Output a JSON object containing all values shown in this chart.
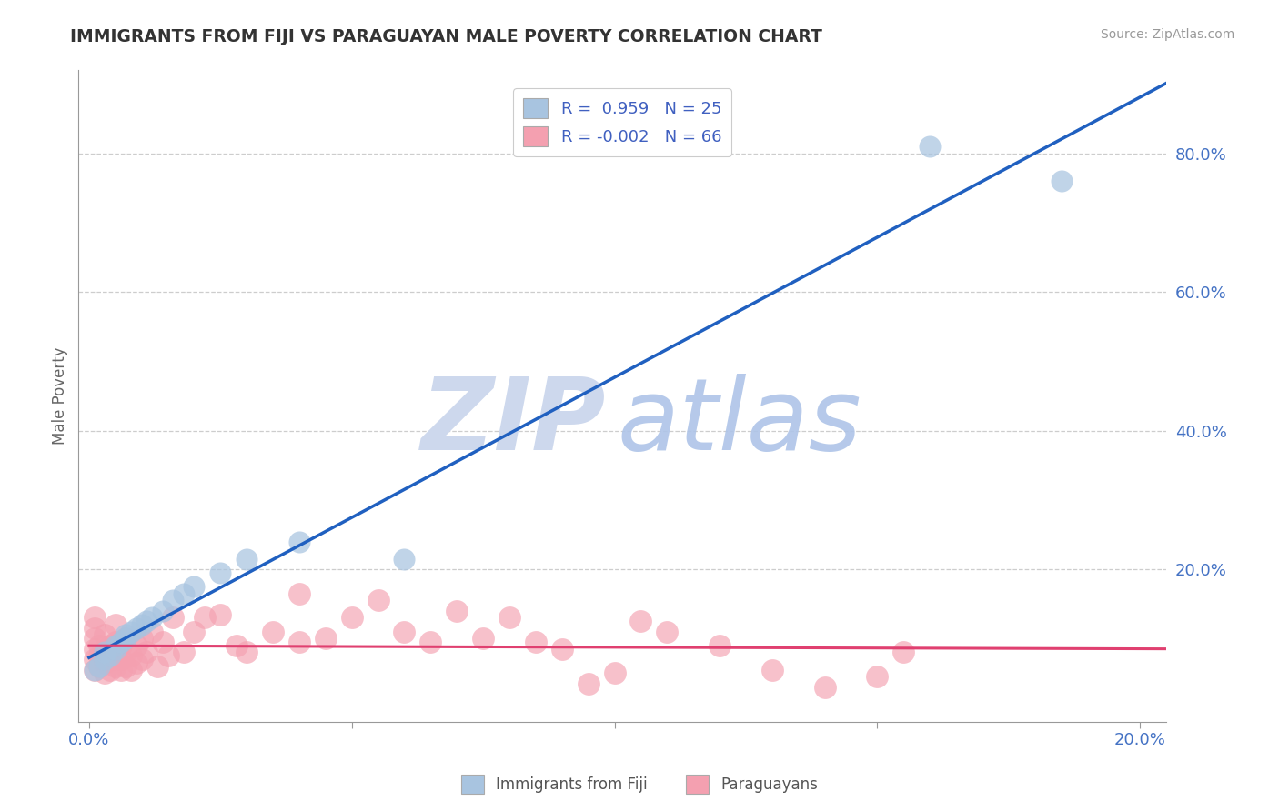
{
  "title": "IMMIGRANTS FROM FIJI VS PARAGUAYAN MALE POVERTY CORRELATION CHART",
  "source": "Source: ZipAtlas.com",
  "tick_color": "#4472c4",
  "ylabel": "Male Poverty",
  "xlim": [
    -0.002,
    0.205
  ],
  "ylim": [
    -0.02,
    0.92
  ],
  "xticks": [
    0.0,
    0.05,
    0.1,
    0.15,
    0.2
  ],
  "yticks": [
    0.2,
    0.4,
    0.6,
    0.8
  ],
  "ytick_labels": [
    "20.0%",
    "40.0%",
    "60.0%",
    "80.0%"
  ],
  "xtick_labels": [
    "0.0%",
    "",
    "",
    "",
    "20.0%"
  ],
  "fiji_R": 0.959,
  "fiji_N": 25,
  "para_R": -0.002,
  "para_N": 66,
  "fiji_color": "#a8c4e0",
  "para_color": "#f4a0b0",
  "fiji_line_color": "#2060c0",
  "para_line_color": "#e04070",
  "legend_text_color": "#4060c0",
  "watermark_zip_color": "#cdd8ed",
  "watermark_atlas_color": "#aec4e8",
  "fiji_x": [
    0.001,
    0.002,
    0.003,
    0.003,
    0.004,
    0.005,
    0.005,
    0.006,
    0.007,
    0.007,
    0.008,
    0.009,
    0.01,
    0.011,
    0.012,
    0.014,
    0.016,
    0.018,
    0.02,
    0.025,
    0.03,
    0.04,
    0.06,
    0.16,
    0.185
  ],
  "fiji_y": [
    0.055,
    0.06,
    0.07,
    0.08,
    0.075,
    0.085,
    0.09,
    0.095,
    0.1,
    0.105,
    0.11,
    0.115,
    0.12,
    0.125,
    0.13,
    0.14,
    0.155,
    0.165,
    0.175,
    0.195,
    0.215,
    0.24,
    0.215,
    0.81,
    0.76
  ],
  "para_x": [
    0.001,
    0.001,
    0.001,
    0.001,
    0.001,
    0.001,
    0.002,
    0.002,
    0.002,
    0.003,
    0.003,
    0.003,
    0.003,
    0.004,
    0.004,
    0.004,
    0.005,
    0.005,
    0.005,
    0.005,
    0.006,
    0.006,
    0.006,
    0.007,
    0.007,
    0.007,
    0.008,
    0.008,
    0.009,
    0.009,
    0.01,
    0.01,
    0.011,
    0.012,
    0.013,
    0.014,
    0.015,
    0.016,
    0.018,
    0.02,
    0.022,
    0.025,
    0.028,
    0.03,
    0.035,
    0.04,
    0.04,
    0.045,
    0.05,
    0.055,
    0.06,
    0.065,
    0.07,
    0.075,
    0.08,
    0.085,
    0.09,
    0.095,
    0.1,
    0.105,
    0.11,
    0.12,
    0.13,
    0.14,
    0.15,
    0.155
  ],
  "para_y": [
    0.055,
    0.07,
    0.085,
    0.1,
    0.115,
    0.13,
    0.06,
    0.075,
    0.09,
    0.05,
    0.065,
    0.08,
    0.105,
    0.055,
    0.07,
    0.09,
    0.06,
    0.075,
    0.095,
    0.12,
    0.055,
    0.07,
    0.09,
    0.06,
    0.08,
    0.1,
    0.055,
    0.075,
    0.065,
    0.09,
    0.07,
    0.1,
    0.08,
    0.11,
    0.06,
    0.095,
    0.075,
    0.13,
    0.08,
    0.11,
    0.13,
    0.135,
    0.09,
    0.08,
    0.11,
    0.165,
    0.095,
    0.1,
    0.13,
    0.155,
    0.11,
    0.095,
    0.14,
    0.1,
    0.13,
    0.095,
    0.085,
    0.035,
    0.05,
    0.125,
    0.11,
    0.09,
    0.055,
    0.03,
    0.045,
    0.08
  ],
  "background_color": "#ffffff",
  "grid_color": "#c8c8c8"
}
